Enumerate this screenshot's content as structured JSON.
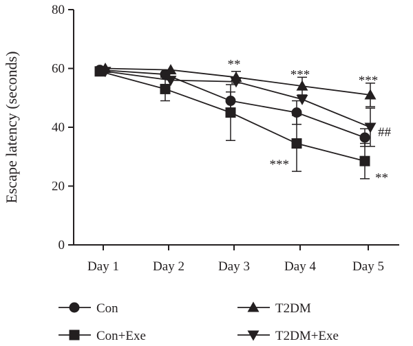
{
  "chart_data": {
    "type": "line",
    "title": "",
    "xlabel": "",
    "ylabel": "Escape latency (seconds)",
    "categories": [
      "Day 1",
      "Day 2",
      "Day 3",
      "Day 4",
      "Day 5"
    ],
    "ylim": [
      0,
      80
    ],
    "yticks": [
      "0",
      "20",
      "40",
      "60",
      "80"
    ],
    "grid": false,
    "legend_position": "bottom",
    "series": [
      {
        "name": "Con",
        "marker": "circle",
        "values": [
          59.5,
          58.0,
          49.0,
          45.0,
          36.5
        ],
        "errors": [
          null,
          null,
          3,
          4,
          3
        ]
      },
      {
        "name": "Con+Exe",
        "marker": "square",
        "values": [
          59.0,
          53.0,
          45.0,
          34.5,
          28.5
        ],
        "errors": [
          1.5,
          4,
          9.5,
          9.5,
          6
        ]
      },
      {
        "name": "T2DM",
        "marker": "triangle-up",
        "values": [
          60.0,
          59.5,
          57.0,
          54.0,
          51.0
        ],
        "errors": [
          null,
          null,
          2,
          3,
          4
        ]
      },
      {
        "name": "T2DM+Exe",
        "marker": "triangle-down",
        "values": [
          59.0,
          56.0,
          55.5,
          49.5,
          40.0
        ],
        "errors": [
          null,
          null,
          null,
          null,
          6.5
        ]
      }
    ],
    "annotations": [
      {
        "text": "**",
        "category": "Day 3",
        "y": 63
      },
      {
        "text": "***",
        "category": "Day 4",
        "y": 59.5
      },
      {
        "text": "***",
        "category": "Day 5",
        "y": 57.5
      },
      {
        "text": "##",
        "category": "Day 5",
        "y": 40
      },
      {
        "text": "***",
        "category": "Day 4",
        "y": 29
      },
      {
        "text": "**",
        "category": "Day 5",
        "y": 24.5
      }
    ]
  }
}
